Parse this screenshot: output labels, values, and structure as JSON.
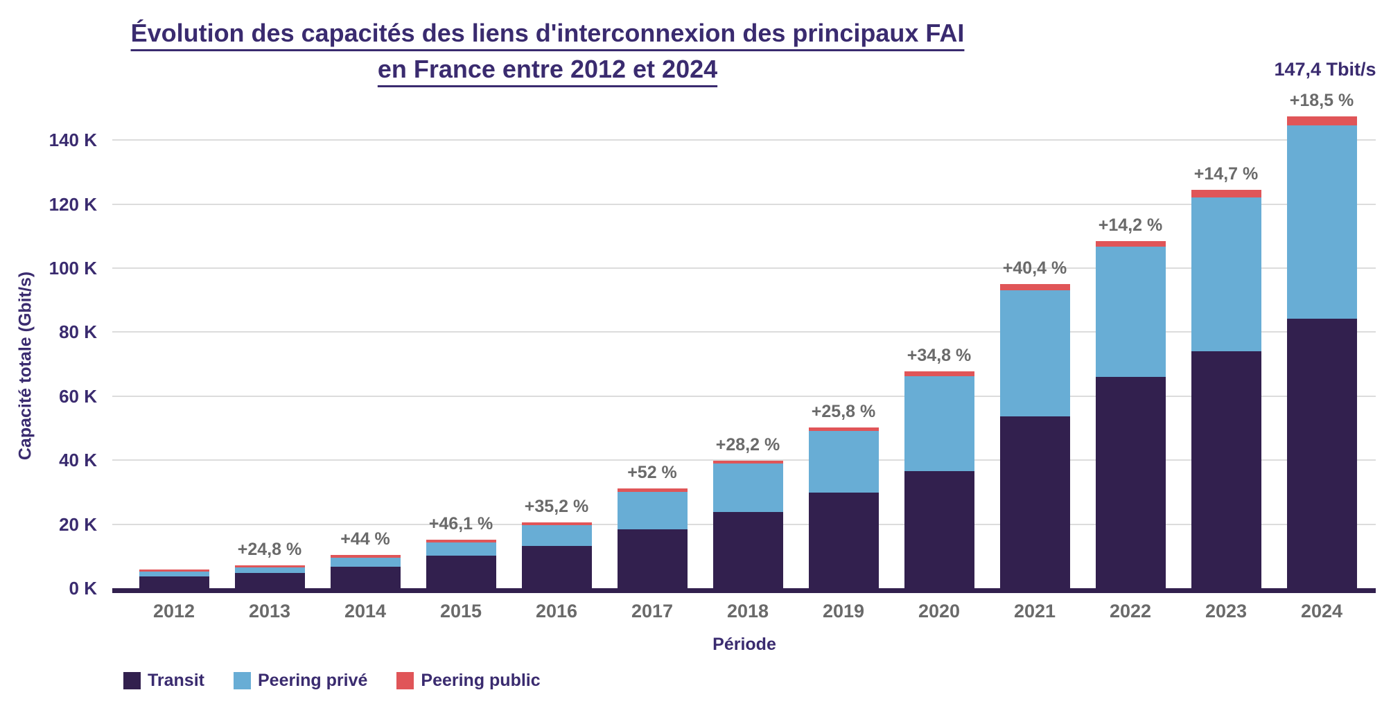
{
  "title": {
    "line1": "Évolution des capacités des liens d'interconnexion des principaux FAI",
    "line2": "en France entre 2012 et 2024"
  },
  "annotation": {
    "total_2024": "147,4 Tbit/s"
  },
  "y_axis": {
    "title": "Capacité totale (Gbit/s)",
    "tick_labels": [
      "0 K",
      "20 K",
      "40 K",
      "60 K",
      "80 K",
      "100 K",
      "120 K",
      "140 K"
    ],
    "tick_values": [
      0,
      20,
      40,
      60,
      80,
      100,
      120,
      140
    ]
  },
  "x_axis": {
    "title": "Période"
  },
  "colors": {
    "accent_text": "#3a2b6f",
    "muted_text": "#6a6a6a",
    "grid": "#dcdcdc",
    "axis": "#32204e",
    "background": "#ffffff"
  },
  "legend": {
    "items": [
      {
        "label": "Transit",
        "color": "#32204e"
      },
      {
        "label": "Peering privé",
        "color": "#68add5"
      },
      {
        "label": "Peering public",
        "color": "#e05558"
      }
    ]
  },
  "chart_data": {
    "type": "bar",
    "stacked": true,
    "title": "Évolution des capacités des liens d'interconnexion des principaux FAI en France entre 2012 et 2024",
    "xlabel": "Période",
    "ylabel": "Capacité totale (Gbit/s)",
    "unit": "thousands of Gbit/s (Tbit/s)",
    "ylim": [
      0,
      150
    ],
    "grid": true,
    "legend_position": "bottom-left",
    "categories": [
      "2012",
      "2013",
      "2014",
      "2015",
      "2016",
      "2017",
      "2018",
      "2019",
      "2020",
      "2021",
      "2022",
      "2023",
      "2024"
    ],
    "series": [
      {
        "name": "Transit",
        "color": "#32204e",
        "values": [
          3.7,
          4.7,
          6.8,
          10.2,
          13.3,
          18.5,
          23.9,
          29.9,
          36.6,
          53.6,
          66.1,
          74.1,
          84.3
        ]
      },
      {
        "name": "Peering privé",
        "color": "#68add5",
        "values": [
          1.4,
          1.7,
          2.8,
          4.1,
          6.3,
          11.6,
          15.0,
          19.3,
          29.6,
          39.4,
          40.7,
          48.0,
          60.2
        ]
      },
      {
        "name": "Peering public",
        "color": "#e05558",
        "values": [
          0.7,
          0.8,
          0.8,
          0.8,
          0.9,
          1.0,
          1.0,
          1.0,
          1.5,
          2.0,
          1.7,
          2.3,
          2.9
        ]
      }
    ],
    "totals": [
      5.8,
      7.2,
      10.4,
      15.1,
      20.5,
      31.1,
      39.9,
      50.2,
      67.7,
      95.0,
      108.5,
      124.4,
      147.4
    ],
    "growth_labels": [
      null,
      "+24,8 %",
      "+44 %",
      "+46,1 %",
      "+35,2 %",
      "+52 %",
      "+28,2 %",
      "+25,8 %",
      "+34,8 %",
      "+40,4 %",
      "+14,2 %",
      "+14,7 %",
      "+18,5 %"
    ],
    "total_annotation": {
      "category": "2024",
      "text": "147,4 Tbit/s"
    }
  }
}
